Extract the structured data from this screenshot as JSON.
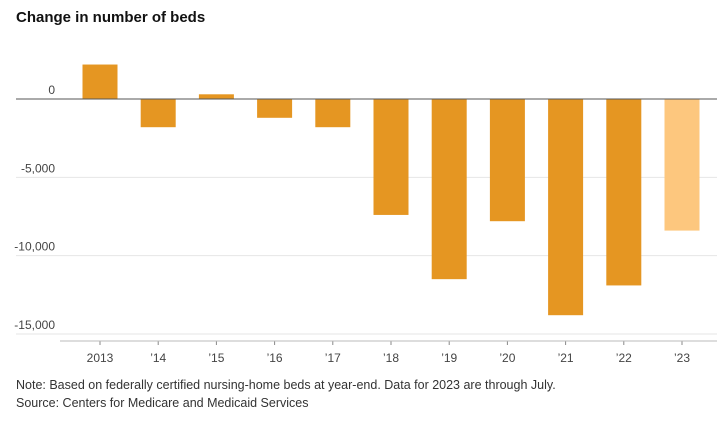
{
  "chart_data": {
    "type": "bar",
    "title": "Change in number of beds",
    "xlabel": "",
    "ylabel": "",
    "categories": [
      "2013",
      "’14",
      "’15",
      "’16",
      "’17",
      "’18",
      "’19",
      "’20",
      "’21",
      "’22",
      "’23"
    ],
    "values": [
      2200,
      -1800,
      300,
      -1200,
      -1800,
      -7400,
      -11500,
      -7800,
      -13800,
      -11900,
      -8400
    ],
    "partial_year_flag": [
      false,
      false,
      false,
      false,
      false,
      false,
      false,
      false,
      false,
      false,
      true
    ],
    "yticks": [
      0,
      -5000,
      -10000,
      -15000
    ],
    "ytick_labels": [
      "0",
      "-5,000",
      "-10,000",
      "-15,000"
    ],
    "ylim": [
      -15000,
      2500
    ],
    "grid": true,
    "colors": {
      "bar": "#e59622",
      "bar_partial": "#fdc77e",
      "grid": "#e6e6e6",
      "zero_line": "#555555"
    }
  },
  "notes": {
    "note": "Note: Based on federally certified nursing-home beds at year-end. Data for 2023 are through July.",
    "source": "Source: Centers for Medicare and Medicaid Services"
  }
}
